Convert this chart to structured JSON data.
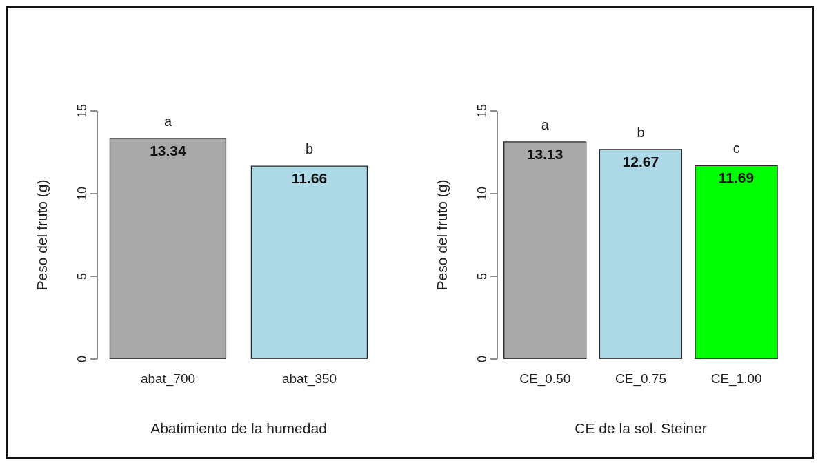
{
  "chart_data": [
    {
      "type": "bar",
      "xlabel": "Abatimiento de la humedad",
      "ylabel": "Peso del fruto (g)",
      "categories": [
        "abat_700",
        "abat_350"
      ],
      "values": [
        13.34,
        11.66
      ],
      "colors": [
        "#a9a9a9",
        "#add8e6"
      ],
      "ylim": [
        0,
        15
      ],
      "yticks": [
        0,
        5,
        10,
        15
      ],
      "data_labels": true,
      "grid": false,
      "legend": false,
      "annotations": [
        "a",
        "b"
      ]
    },
    {
      "type": "bar",
      "xlabel": "CE de la sol. Steiner",
      "ylabel": "Peso del fruto (g)",
      "categories": [
        "CE_0.50",
        "CE_0.75",
        "CE_1.00"
      ],
      "values": [
        13.13,
        12.67,
        11.69
      ],
      "colors": [
        "#a9a9a9",
        "#add8e6",
        "#00ff00"
      ],
      "ylim": [
        0,
        15
      ],
      "yticks": [
        0,
        5,
        10,
        15
      ],
      "data_labels": true,
      "grid": false,
      "legend": false,
      "annotations": [
        "a",
        "b",
        "c"
      ]
    }
  ]
}
